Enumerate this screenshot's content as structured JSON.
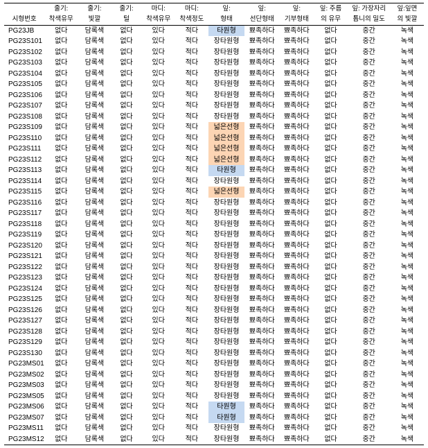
{
  "table": {
    "font_size_header": 9.5,
    "font_size_body": 10,
    "background_color": "#ffffff",
    "border_color": "#000000",
    "highlight_blue": "#c5d9f1",
    "highlight_orange": "#fcd5b4",
    "columns": [
      {
        "key": "c0",
        "line1": "",
        "line2": "시형번호",
        "width": 58
      },
      {
        "key": "c1",
        "line1": "줄기:",
        "line2": "착색유무",
        "width": 48
      },
      {
        "key": "c2",
        "line1": "줄기:",
        "line2": "빛깔",
        "width": 48
      },
      {
        "key": "c3",
        "line1": "줄기:",
        "line2": "털",
        "width": 44
      },
      {
        "key": "c4",
        "line1": "마디:",
        "line2": "착색유무",
        "width": 48
      },
      {
        "key": "c5",
        "line1": "마디:",
        "line2": "착색정도",
        "width": 48
      },
      {
        "key": "c6",
        "line1": "잎:",
        "line2": "형태",
        "width": 52
      },
      {
        "key": "c7",
        "line1": "잎:",
        "line2": "선단형태",
        "width": 50
      },
      {
        "key": "c8",
        "line1": "잎:",
        "line2": "기부형태",
        "width": 50
      },
      {
        "key": "c9",
        "line1": "잎: 주름",
        "line2": "의 유무",
        "width": 48
      },
      {
        "key": "c10",
        "line1": "잎: 가장자리",
        "line2": "톱니의 밀도",
        "width": 62
      },
      {
        "key": "c11",
        "line1": "잎:잎면",
        "line2": "의 빛깔",
        "width": 48
      }
    ],
    "rows": [
      {
        "id": "PG23JB",
        "v": [
          "없다",
          "담록색",
          "없다",
          "있다",
          "적다",
          "타원형",
          "뾰족하다",
          "뾰족하다",
          "없다",
          "중간",
          "녹색"
        ],
        "hl": {
          "5": "blue"
        }
      },
      {
        "id": "PG23S101",
        "v": [
          "없다",
          "담록색",
          "없다",
          "있다",
          "적다",
          "장타원형",
          "뾰족하다",
          "뾰족하다",
          "없다",
          "중간",
          "녹색"
        ]
      },
      {
        "id": "PG23S102",
        "v": [
          "없다",
          "담록색",
          "없다",
          "있다",
          "적다",
          "장타원형",
          "뾰족하다",
          "뾰족하다",
          "없다",
          "중간",
          "녹색"
        ]
      },
      {
        "id": "PG23S103",
        "v": [
          "없다",
          "담록색",
          "없다",
          "있다",
          "적다",
          "장타원형",
          "뾰족하다",
          "뾰족하다",
          "없다",
          "중간",
          "녹색"
        ]
      },
      {
        "id": "PG23S104",
        "v": [
          "없다",
          "담록색",
          "없다",
          "있다",
          "적다",
          "장타원형",
          "뾰족하다",
          "뾰족하다",
          "없다",
          "중간",
          "녹색"
        ]
      },
      {
        "id": "PG23S105",
        "v": [
          "없다",
          "담록색",
          "없다",
          "있다",
          "적다",
          "장타원형",
          "뾰족하다",
          "뾰족하다",
          "없다",
          "중간",
          "녹색"
        ]
      },
      {
        "id": "PG23S106",
        "v": [
          "없다",
          "담록색",
          "없다",
          "있다",
          "적다",
          "장타원형",
          "뾰족하다",
          "뾰족하다",
          "없다",
          "중간",
          "녹색"
        ]
      },
      {
        "id": "PG23S107",
        "v": [
          "없다",
          "담록색",
          "없다",
          "있다",
          "적다",
          "장타원형",
          "뾰족하다",
          "뾰족하다",
          "없다",
          "중간",
          "녹색"
        ]
      },
      {
        "id": "PG23S108",
        "v": [
          "없다",
          "담록색",
          "없다",
          "있다",
          "적다",
          "장타원형",
          "뾰족하다",
          "뾰족하다",
          "없다",
          "중간",
          "녹색"
        ]
      },
      {
        "id": "PG23S109",
        "v": [
          "없다",
          "담록색",
          "없다",
          "있다",
          "적다",
          "넓은선형",
          "뾰족하다",
          "뾰족하다",
          "없다",
          "중간",
          "녹색"
        ],
        "hl": {
          "5": "orange"
        }
      },
      {
        "id": "PG23S110",
        "v": [
          "없다",
          "담록색",
          "없다",
          "있다",
          "적다",
          "넓은선형",
          "뾰족하다",
          "뾰족하다",
          "없다",
          "중간",
          "녹색"
        ],
        "hl": {
          "5": "orange"
        }
      },
      {
        "id": "PG23S111",
        "v": [
          "없다",
          "담록색",
          "없다",
          "있다",
          "적다",
          "넓은선형",
          "뾰족하다",
          "뾰족하다",
          "없다",
          "중간",
          "녹색"
        ],
        "hl": {
          "5": "orange"
        }
      },
      {
        "id": "PG23S112",
        "v": [
          "없다",
          "담록색",
          "없다",
          "있다",
          "적다",
          "넓은선형",
          "뾰족하다",
          "뾰족하다",
          "없다",
          "중간",
          "녹색"
        ],
        "hl": {
          "5": "orange"
        }
      },
      {
        "id": "PG23S113",
        "v": [
          "없다",
          "담록색",
          "없다",
          "있다",
          "적다",
          "타원형",
          "뾰족하다",
          "뾰족하다",
          "없다",
          "중간",
          "녹색"
        ],
        "hl": {
          "5": "blue"
        }
      },
      {
        "id": "PG23S114",
        "v": [
          "없다",
          "담록색",
          "없다",
          "있다",
          "적다",
          "장타원형",
          "뾰족하다",
          "뾰족하다",
          "없다",
          "중간",
          "녹색"
        ]
      },
      {
        "id": "PG23S115",
        "v": [
          "없다",
          "담록색",
          "없다",
          "있다",
          "적다",
          "넓은선형",
          "뾰족하다",
          "뾰족하다",
          "없다",
          "중간",
          "녹색"
        ],
        "hl": {
          "5": "orange"
        }
      },
      {
        "id": "PG23S116",
        "v": [
          "없다",
          "담록색",
          "없다",
          "있다",
          "적다",
          "장타원형",
          "뾰족하다",
          "뾰족하다",
          "없다",
          "중간",
          "녹색"
        ]
      },
      {
        "id": "PG23S117",
        "v": [
          "없다",
          "담록색",
          "없다",
          "있다",
          "적다",
          "장타원형",
          "뾰족하다",
          "뾰족하다",
          "없다",
          "중간",
          "녹색"
        ]
      },
      {
        "id": "PG23S118",
        "v": [
          "없다",
          "담록색",
          "없다",
          "있다",
          "적다",
          "장타원형",
          "뾰족하다",
          "뾰족하다",
          "없다",
          "중간",
          "녹색"
        ]
      },
      {
        "id": "PG23S119",
        "v": [
          "없다",
          "담록색",
          "없다",
          "있다",
          "적다",
          "장타원형",
          "뾰족하다",
          "뾰족하다",
          "없다",
          "중간",
          "녹색"
        ]
      },
      {
        "id": "PG23S120",
        "v": [
          "없다",
          "담록색",
          "없다",
          "있다",
          "적다",
          "장타원형",
          "뾰족하다",
          "뾰족하다",
          "없다",
          "중간",
          "녹색"
        ]
      },
      {
        "id": "PG23S121",
        "v": [
          "없다",
          "담록색",
          "없다",
          "있다",
          "적다",
          "장타원형",
          "뾰족하다",
          "뾰족하다",
          "없다",
          "중간",
          "녹색"
        ]
      },
      {
        "id": "PG23S122",
        "v": [
          "없다",
          "담록색",
          "없다",
          "있다",
          "적다",
          "장타원형",
          "뾰족하다",
          "뾰족하다",
          "없다",
          "중간",
          "녹색"
        ]
      },
      {
        "id": "PG23S123",
        "v": [
          "없다",
          "담록색",
          "없다",
          "있다",
          "적다",
          "장타원형",
          "뾰족하다",
          "뾰족하다",
          "없다",
          "중간",
          "녹색"
        ]
      },
      {
        "id": "PG23S124",
        "v": [
          "없다",
          "담록색",
          "없다",
          "있다",
          "적다",
          "장타원형",
          "뾰족하다",
          "뾰족하다",
          "없다",
          "중간",
          "녹색"
        ]
      },
      {
        "id": "PG23S125",
        "v": [
          "없다",
          "담록색",
          "없다",
          "있다",
          "적다",
          "장타원형",
          "뾰족하다",
          "뾰족하다",
          "없다",
          "중간",
          "녹색"
        ]
      },
      {
        "id": "PG23S126",
        "v": [
          "없다",
          "담록색",
          "없다",
          "있다",
          "적다",
          "장타원형",
          "뾰족하다",
          "뾰족하다",
          "없다",
          "중간",
          "녹색"
        ]
      },
      {
        "id": "PG23S127",
        "v": [
          "없다",
          "담록색",
          "없다",
          "있다",
          "적다",
          "장타원형",
          "뾰족하다",
          "뾰족하다",
          "없다",
          "중간",
          "녹색"
        ]
      },
      {
        "id": "PG23S128",
        "v": [
          "없다",
          "담록색",
          "없다",
          "있다",
          "적다",
          "장타원형",
          "뾰족하다",
          "뾰족하다",
          "없다",
          "중간",
          "녹색"
        ]
      },
      {
        "id": "PG23S129",
        "v": [
          "없다",
          "담록색",
          "없다",
          "있다",
          "적다",
          "장타원형",
          "뾰족하다",
          "뾰족하다",
          "없다",
          "중간",
          "녹색"
        ]
      },
      {
        "id": "PG23S130",
        "v": [
          "없다",
          "담록색",
          "없다",
          "있다",
          "적다",
          "장타원형",
          "뾰족하다",
          "뾰족하다",
          "없다",
          "중간",
          "녹색"
        ]
      },
      {
        "id": "PG23MS01",
        "v": [
          "없다",
          "담록색",
          "없다",
          "있다",
          "적다",
          "장타원형",
          "뾰족하다",
          "뾰족하다",
          "없다",
          "중간",
          "녹색"
        ]
      },
      {
        "id": "PG23MS02",
        "v": [
          "없다",
          "담록색",
          "없다",
          "있다",
          "적다",
          "장타원형",
          "뾰족하다",
          "뾰족하다",
          "없다",
          "중간",
          "녹색"
        ]
      },
      {
        "id": "PG23MS03",
        "v": [
          "없다",
          "담록색",
          "없다",
          "있다",
          "적다",
          "장타원형",
          "뾰족하다",
          "뾰족하다",
          "없다",
          "중간",
          "녹색"
        ]
      },
      {
        "id": "PG23MS05",
        "v": [
          "없다",
          "담록색",
          "없다",
          "있다",
          "적다",
          "장타원형",
          "뾰족하다",
          "뾰족하다",
          "없다",
          "중간",
          "녹색"
        ]
      },
      {
        "id": "PG23MS06",
        "v": [
          "없다",
          "담록색",
          "없다",
          "있다",
          "적다",
          "타원형",
          "뾰족하다",
          "뾰족하다",
          "없다",
          "중간",
          "녹색"
        ],
        "hl": {
          "5": "blue"
        }
      },
      {
        "id": "PG23MS07",
        "v": [
          "없다",
          "담록색",
          "없다",
          "있다",
          "적다",
          "타원형",
          "뾰족하다",
          "뾰족하다",
          "없다",
          "중간",
          "녹색"
        ],
        "hl": {
          "5": "blue"
        }
      },
      {
        "id": "PG23MS11",
        "v": [
          "없다",
          "담록색",
          "없다",
          "있다",
          "적다",
          "장타원형",
          "뾰족하다",
          "뾰족하다",
          "없다",
          "중간",
          "녹색"
        ]
      },
      {
        "id": "PG23MS12",
        "v": [
          "없다",
          "담록색",
          "없다",
          "있다",
          "적다",
          "장타원형",
          "뾰족하다",
          "뾰족하다",
          "없다",
          "중간",
          "녹색"
        ]
      }
    ]
  }
}
